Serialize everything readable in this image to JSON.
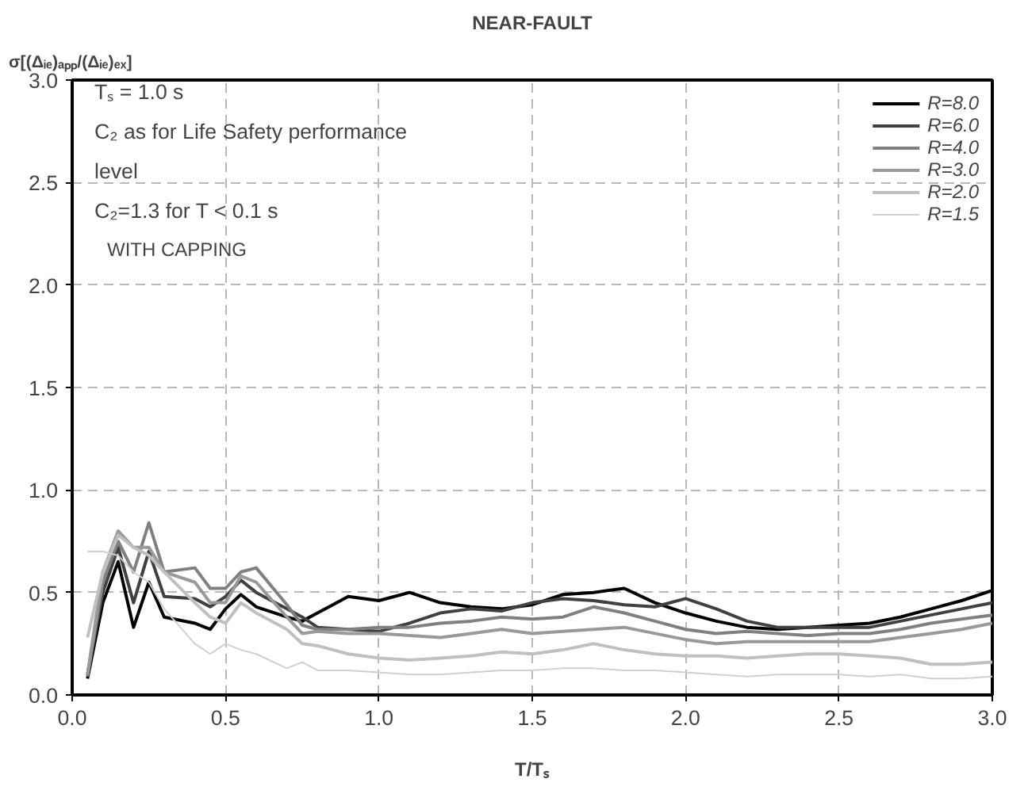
{
  "chart_data": {
    "type": "line",
    "title": "NEAR-FAULT",
    "xlabel": "T/Tₛ",
    "ylabel": "σ[(Δᵢₑ)ₐₚₚ/(Δᵢₑ)ₑₓ]",
    "x": [
      0.05,
      0.1,
      0.15,
      0.2,
      0.25,
      0.3,
      0.4,
      0.45,
      0.5,
      0.55,
      0.6,
      0.7,
      0.75,
      0.8,
      0.9,
      1.0,
      1.1,
      1.2,
      1.3,
      1.4,
      1.5,
      1.6,
      1.7,
      1.8,
      1.9,
      2.0,
      2.1,
      2.2,
      2.3,
      2.4,
      2.5,
      2.6,
      2.7,
      2.8,
      2.9,
      3.0
    ],
    "series": [
      {
        "name": "R=8.0",
        "color": "#000000",
        "values": [
          0.08,
          0.45,
          0.65,
          0.33,
          0.55,
          0.38,
          0.35,
          0.32,
          0.42,
          0.49,
          0.43,
          0.38,
          0.36,
          0.4,
          0.48,
          0.46,
          0.5,
          0.45,
          0.43,
          0.42,
          0.44,
          0.49,
          0.5,
          0.52,
          0.45,
          0.4,
          0.36,
          0.33,
          0.32,
          0.33,
          0.34,
          0.35,
          0.38,
          0.42,
          0.46,
          0.51
        ]
      },
      {
        "name": "R=6.0",
        "color": "#404040",
        "values": [
          0.1,
          0.5,
          0.72,
          0.45,
          0.7,
          0.48,
          0.47,
          0.43,
          0.48,
          0.56,
          0.5,
          0.42,
          0.38,
          0.33,
          0.32,
          0.31,
          0.35,
          0.4,
          0.42,
          0.41,
          0.45,
          0.47,
          0.46,
          0.44,
          0.43,
          0.47,
          0.42,
          0.36,
          0.33,
          0.33,
          0.33,
          0.33,
          0.36,
          0.39,
          0.42,
          0.45
        ]
      },
      {
        "name": "R=4.0",
        "color": "#808080",
        "values": [
          0.09,
          0.55,
          0.75,
          0.6,
          0.84,
          0.6,
          0.62,
          0.52,
          0.52,
          0.6,
          0.62,
          0.44,
          0.34,
          0.32,
          0.32,
          0.33,
          0.33,
          0.35,
          0.36,
          0.38,
          0.37,
          0.38,
          0.43,
          0.4,
          0.36,
          0.32,
          0.3,
          0.31,
          0.3,
          0.29,
          0.3,
          0.3,
          0.32,
          0.35,
          0.37,
          0.39
        ]
      },
      {
        "name": "R=3.0",
        "color": "#999999",
        "values": [
          0.1,
          0.6,
          0.8,
          0.72,
          0.72,
          0.6,
          0.55,
          0.45,
          0.45,
          0.58,
          0.55,
          0.38,
          0.3,
          0.31,
          0.3,
          0.3,
          0.29,
          0.28,
          0.3,
          0.32,
          0.3,
          0.31,
          0.32,
          0.33,
          0.3,
          0.27,
          0.25,
          0.26,
          0.26,
          0.26,
          0.26,
          0.26,
          0.28,
          0.3,
          0.32,
          0.35
        ]
      },
      {
        "name": "R=2.0",
        "color": "#c0c0c0",
        "values": [
          0.28,
          0.6,
          0.78,
          0.72,
          0.68,
          0.6,
          0.45,
          0.38,
          0.35,
          0.45,
          0.4,
          0.32,
          0.25,
          0.24,
          0.2,
          0.18,
          0.17,
          0.18,
          0.19,
          0.21,
          0.2,
          0.22,
          0.25,
          0.22,
          0.2,
          0.19,
          0.19,
          0.18,
          0.19,
          0.2,
          0.2,
          0.19,
          0.18,
          0.15,
          0.15,
          0.16
        ]
      },
      {
        "name": "R=1.5",
        "color": "#d0d0d0",
        "values": [
          0.7,
          0.7,
          0.68,
          0.6,
          0.55,
          0.42,
          0.25,
          0.2,
          0.25,
          0.22,
          0.2,
          0.13,
          0.16,
          0.12,
          0.12,
          0.11,
          0.1,
          0.1,
          0.11,
          0.12,
          0.12,
          0.13,
          0.13,
          0.12,
          0.12,
          0.11,
          0.1,
          0.09,
          0.1,
          0.1,
          0.1,
          0.09,
          0.1,
          0.08,
          0.08,
          0.09
        ]
      }
    ],
    "xlim": [
      0,
      3.0
    ],
    "ylim": [
      0,
      3.0
    ],
    "xticks": [
      {
        "value": 0,
        "label": "0.0"
      },
      0.5,
      {
        "value": 1,
        "label": "1.0"
      },
      1.5,
      {
        "value": 2,
        "label": "2.0"
      },
      2.5,
      {
        "value": 3,
        "label": "3.0"
      }
    ],
    "yticks": [
      {
        "value": 0,
        "label": "0.0"
      },
      0.5,
      {
        "value": 1,
        "label": "1.0"
      },
      1.5,
      {
        "value": 2,
        "label": "2.0"
      },
      2.5,
      {
        "value": 3,
        "label": "3.0"
      }
    ],
    "annotations": [
      "Tₛ = 1.0 s",
      "C₂ as for Life Safety performance level",
      "C₂=1.3 for T < 0.1 s",
      "WITH CAPPING"
    ],
    "grid": true,
    "legend": "top right",
    "line_style": "solid",
    "marker": "none"
  }
}
